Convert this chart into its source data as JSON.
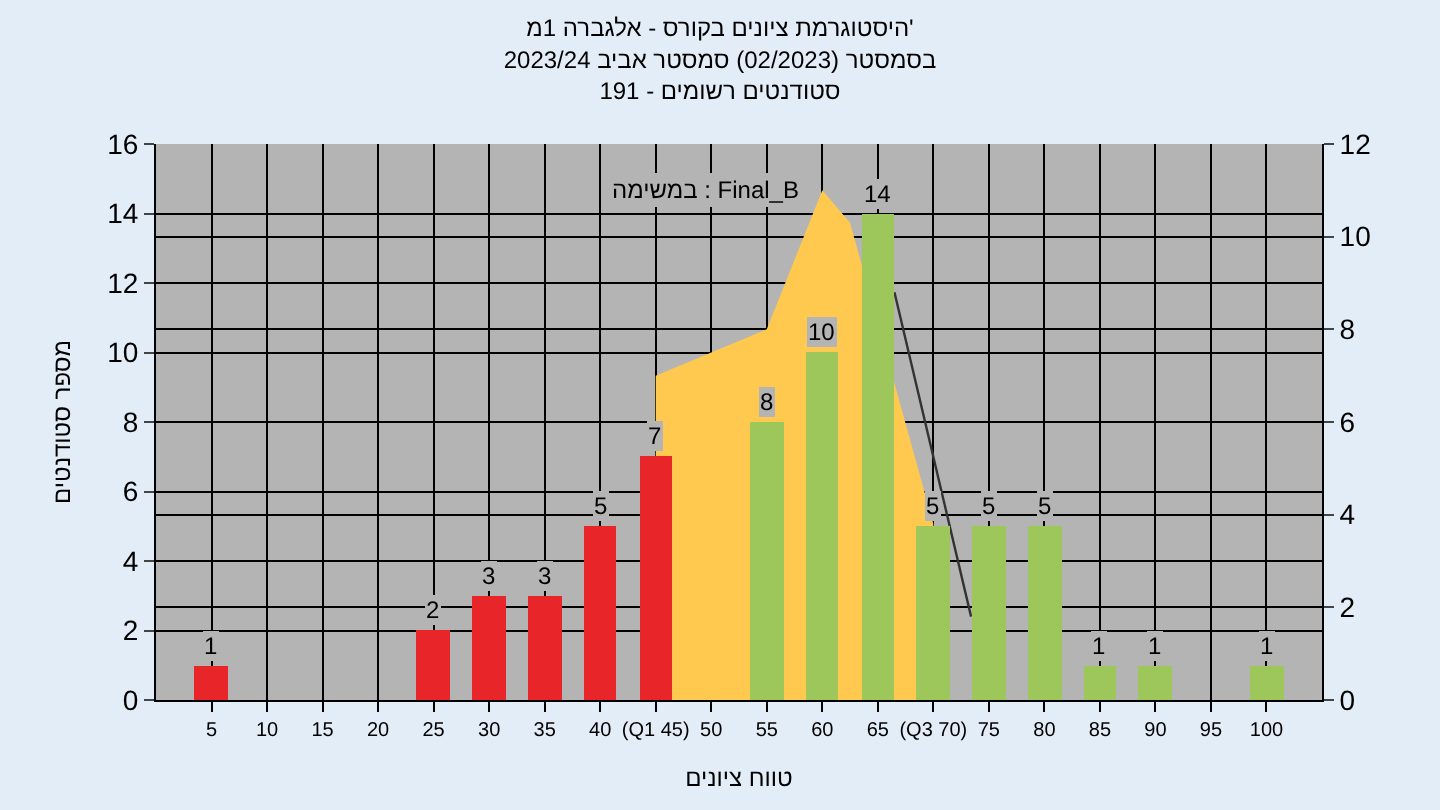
{
  "chart_data": {
    "type": "bar",
    "title": "היסטוגרמת ציונים בקורס - אלגברה 1מ'",
    "subtitle": "בסמסטר (02/2023) סמסטר אביב 2023/24\nסטודנטים רשומים - 191",
    "xlabel": "טווח ציונים",
    "ylabel": "מספר סטודנטים",
    "annotations": [
      "במשימה : Final_B"
    ],
    "x": [
      5,
      10,
      15,
      20,
      25,
      30,
      35,
      40,
      45,
      50,
      55,
      60,
      65,
      70,
      75,
      80,
      85,
      90,
      95,
      100
    ],
    "series": [
      {
        "type": "area",
        "axis": "y2",
        "color": "#ffc94f",
        "x": [
          45,
          50,
          55,
          60,
          62.5,
          70
        ],
        "values": [
          7,
          7.5,
          8,
          11,
          10.3,
          3.8
        ]
      },
      {
        "type": "bar",
        "colors": [
          "#e8262a",
          "#e8262a",
          "#e8262a",
          "#e8262a",
          "#e8262a",
          "#e8262a",
          "#e8262a",
          "#e8262a",
          "#e8262a",
          "#9dc75a",
          "#9dc75a",
          "#9dc75a",
          "#9dc75a",
          "#9dc75a",
          "#9dc75a",
          "#9dc75a",
          "#9dc75a",
          "#9dc75a",
          "#9dc75a",
          "#9dc75a"
        ],
        "values": [
          1,
          0,
          0,
          0,
          2,
          3,
          3,
          5,
          7,
          0,
          8,
          10,
          14,
          5,
          5,
          5,
          1,
          1,
          0,
          1
        ],
        "value_labels": [
          "1",
          null,
          null,
          null,
          "2",
          "3",
          "3",
          "5",
          "7",
          null,
          "8",
          "10",
          "14",
          "5",
          "5",
          "5",
          "1",
          "1",
          null,
          "1"
        ]
      },
      {
        "type": "line",
        "axis": "y2",
        "color": "#333333",
        "x": [
          66.5,
          73.4
        ],
        "values": [
          8.8,
          1.8
        ]
      }
    ],
    "xlim": [
      0,
      105
    ],
    "xticks": [
      5,
      10,
      15,
      20,
      25,
      30,
      35,
      40,
      {
        "value": 45,
        "label": "(Q1 45)"
      },
      50,
      55,
      60,
      65,
      {
        "value": 70,
        "label": "(Q3 70)"
      },
      75,
      80,
      85,
      90,
      95,
      100
    ],
    "ylim": [
      0,
      16
    ],
    "yticks": [
      0,
      2,
      4,
      6,
      8,
      10,
      12,
      14,
      16
    ],
    "y2lim": [
      0,
      12
    ],
    "y2ticks": [
      0,
      2,
      4,
      6,
      8,
      10,
      12
    ],
    "grid": true
  }
}
